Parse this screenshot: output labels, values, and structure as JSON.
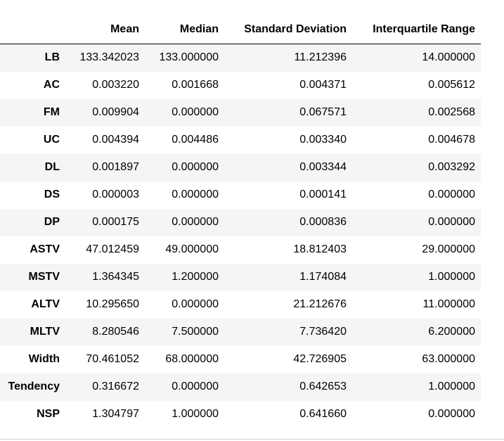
{
  "table": {
    "columns": [
      "",
      "Mean",
      "Median",
      "Standard Deviation",
      "Interquartile Range"
    ],
    "rows": [
      {
        "label": "LB",
        "cells": [
          "133.342023",
          "133.000000",
          "11.212396",
          "14.000000"
        ]
      },
      {
        "label": "AC",
        "cells": [
          "0.003220",
          "0.001668",
          "0.004371",
          "0.005612"
        ]
      },
      {
        "label": "FM",
        "cells": [
          "0.009904",
          "0.000000",
          "0.067571",
          "0.002568"
        ]
      },
      {
        "label": "UC",
        "cells": [
          "0.004394",
          "0.004486",
          "0.003340",
          "0.004678"
        ]
      },
      {
        "label": "DL",
        "cells": [
          "0.001897",
          "0.000000",
          "0.003344",
          "0.003292"
        ]
      },
      {
        "label": "DS",
        "cells": [
          "0.000003",
          "0.000000",
          "0.000141",
          "0.000000"
        ]
      },
      {
        "label": "DP",
        "cells": [
          "0.000175",
          "0.000000",
          "0.000836",
          "0.000000"
        ]
      },
      {
        "label": "ASTV",
        "cells": [
          "47.012459",
          "49.000000",
          "18.812403",
          "29.000000"
        ]
      },
      {
        "label": "MSTV",
        "cells": [
          "1.364345",
          "1.200000",
          "1.174084",
          "1.000000"
        ]
      },
      {
        "label": "ALTV",
        "cells": [
          "10.295650",
          "0.000000",
          "21.212676",
          "11.000000"
        ]
      },
      {
        "label": "MLTV",
        "cells": [
          "8.280546",
          "7.500000",
          "7.736420",
          "6.200000"
        ]
      },
      {
        "label": "Width",
        "cells": [
          "70.461052",
          "68.000000",
          "42.726905",
          "63.000000"
        ]
      },
      {
        "label": "Tendency",
        "cells": [
          "0.316672",
          "0.000000",
          "0.642653",
          "1.000000"
        ]
      },
      {
        "label": "NSP",
        "cells": [
          "1.304797",
          "1.000000",
          "0.641660",
          "0.000000"
        ]
      }
    ]
  }
}
